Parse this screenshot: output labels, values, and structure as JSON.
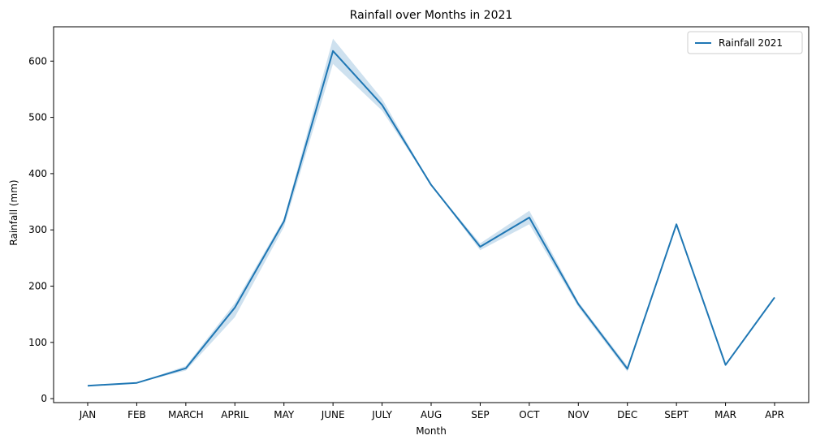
{
  "chart_data": {
    "type": "line",
    "title": "Rainfall over Months in 2021",
    "xlabel": "Month",
    "ylabel": "Rainfall (mm)",
    "categories": [
      "JAN",
      "FEB",
      "MARCH",
      "APRIL",
      "MAY",
      "JUNE",
      "JULY",
      "AUG",
      "SEP",
      "OCT",
      "NOV",
      "DEC",
      "SEPT",
      "MAR",
      "APR"
    ],
    "series": [
      {
        "name": "Rainfall 2021",
        "color": "#1f77b4",
        "values": [
          23,
          28,
          54,
          162,
          315,
          618,
          522,
          380,
          270,
          322,
          168,
          53,
          310,
          60,
          180
        ],
        "ci_lower": [
          23,
          28,
          50,
          145,
          305,
          595,
          512,
          380,
          264,
          310,
          163,
          48,
          310,
          60,
          180
        ],
        "ci_upper": [
          23,
          28,
          58,
          170,
          320,
          640,
          533,
          380,
          276,
          334,
          172,
          58,
          310,
          60,
          180
        ]
      }
    ],
    "ylim": [
      -7,
      661
    ],
    "yticks": [
      0,
      100,
      200,
      300,
      400,
      500,
      600
    ],
    "legend_position": "top-right",
    "grid": false
  }
}
